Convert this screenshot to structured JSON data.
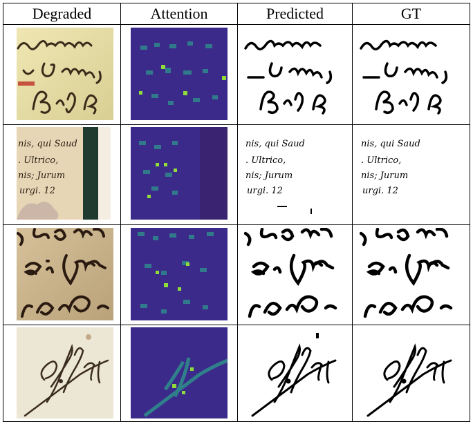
{
  "table": {
    "headers": [
      "Degraded",
      "Attention",
      "Predicted",
      "GT"
    ]
  },
  "rows": [
    {
      "sample": "contrast / vid mg / beruf be"
    },
    {
      "sample": "nis, qui Saud / Ultrico, / nis; Jurum / urgi. 12"
    },
    {
      "sample": "pade / di Jnf / Cand"
    },
    {
      "sample": "Af / Al"
    }
  ],
  "colors": {
    "attention_bg": "#3b2a8a",
    "attention_hot": "#8fdc3a",
    "ink": "#000000",
    "paper_row1": "#e6dfa6",
    "paper_row2": "#e7d6b6",
    "paper_row3": "#c9b48e",
    "paper_row4": "#ece6d4"
  }
}
